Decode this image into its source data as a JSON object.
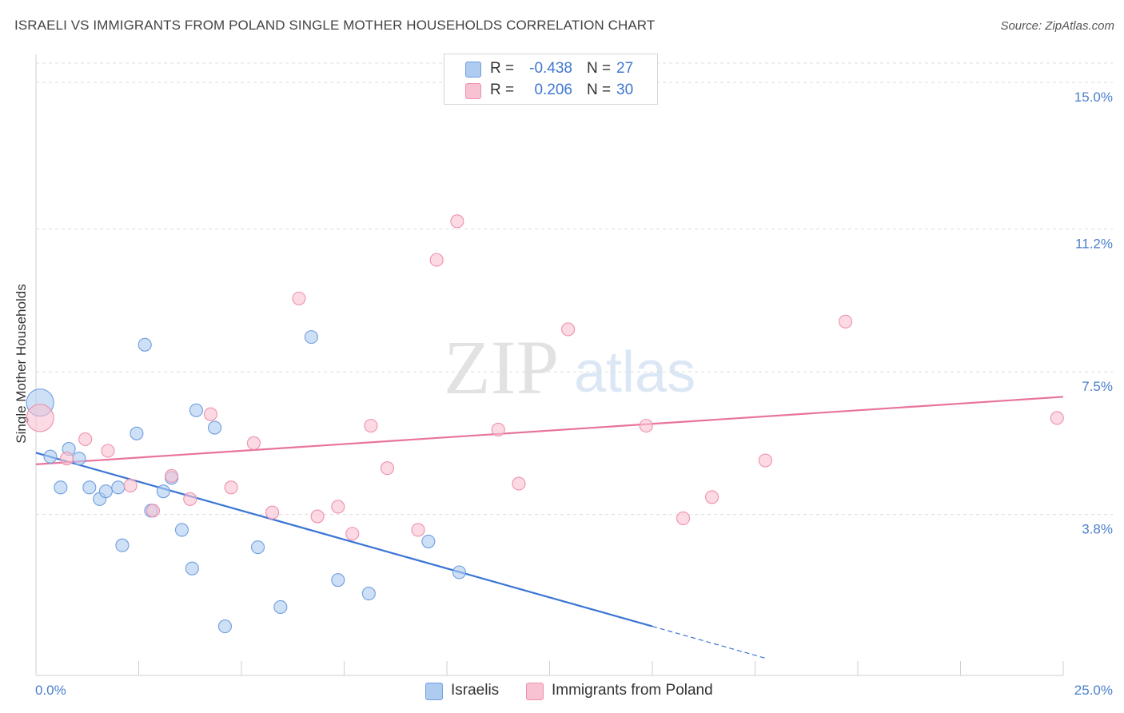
{
  "header": {
    "title": "ISRAELI VS IMMIGRANTS FROM POLAND SINGLE MOTHER HOUSEHOLDS CORRELATION CHART",
    "source": "Source: ZipAtlas.com"
  },
  "watermark": {
    "zip": "ZIP",
    "atlas": "atlas"
  },
  "legend": {
    "rows": [
      {
        "r_label": "R =",
        "r_value": "-0.438",
        "n_label": "N =",
        "n_value": "27",
        "color": "#aecbf0",
        "border": "#6f9ee0"
      },
      {
        "r_label": "R =",
        "r_value": "0.206",
        "n_label": "N =",
        "n_value": "30",
        "color": "#f8c2d2",
        "border": "#ee90ab"
      }
    ]
  },
  "bottom_legend": [
    {
      "label": "Israelis",
      "color": "#aecbf0",
      "border": "#6f9ee0"
    },
    {
      "label": "Immigrants from Poland",
      "color": "#f8c2d2",
      "border": "#ee90ab"
    }
  ],
  "chart_data": {
    "type": "scatter",
    "title": "ISRAELI VS IMMIGRANTS FROM POLAND SINGLE MOTHER HOUSEHOLDS CORRELATION CHART",
    "xlabel": "",
    "ylabel": "Single Mother Households",
    "xlim": [
      0,
      25
    ],
    "ylim": [
      0,
      15.5
    ],
    "x_tick_labels": [
      "0.0%",
      "25.0%"
    ],
    "y_ticks": [
      3.8,
      7.5,
      11.2,
      15.0
    ],
    "y_tick_labels": [
      "3.8%",
      "7.5%",
      "11.2%",
      "15.0%"
    ],
    "grid": "horizontal dashed",
    "legend_placement": "top-center",
    "series": [
      {
        "name": "Israelis",
        "color": "#6f9ee0",
        "fill": "#aecbf0",
        "trend": {
          "x0": 0.0,
          "y0": 5.4,
          "x1": 15.0,
          "y1": 0.9,
          "dash_to_x": 17.8
        },
        "points": [
          {
            "x": 0.1,
            "y": 6.7,
            "big": true
          },
          {
            "x": 0.35,
            "y": 5.3
          },
          {
            "x": 0.6,
            "y": 4.5
          },
          {
            "x": 0.8,
            "y": 5.5
          },
          {
            "x": 1.05,
            "y": 5.25
          },
          {
            "x": 1.3,
            "y": 4.5
          },
          {
            "x": 1.55,
            "y": 4.2
          },
          {
            "x": 1.7,
            "y": 4.4
          },
          {
            "x": 2.0,
            "y": 4.5
          },
          {
            "x": 2.1,
            "y": 3.0
          },
          {
            "x": 2.45,
            "y": 5.9
          },
          {
            "x": 2.65,
            "y": 8.2
          },
          {
            "x": 2.8,
            "y": 3.9
          },
          {
            "x": 3.1,
            "y": 4.4
          },
          {
            "x": 3.3,
            "y": 4.75
          },
          {
            "x": 3.55,
            "y": 3.4
          },
          {
            "x": 3.8,
            "y": 2.4
          },
          {
            "x": 3.9,
            "y": 6.5
          },
          {
            "x": 4.35,
            "y": 6.05
          },
          {
            "x": 4.6,
            "y": 0.9
          },
          {
            "x": 5.4,
            "y": 2.95
          },
          {
            "x": 5.95,
            "y": 1.4
          },
          {
            "x": 6.7,
            "y": 8.4
          },
          {
            "x": 7.35,
            "y": 2.1
          },
          {
            "x": 8.1,
            "y": 1.75
          },
          {
            "x": 9.55,
            "y": 3.1
          },
          {
            "x": 10.3,
            "y": 2.3
          }
        ]
      },
      {
        "name": "Immigrants from Poland",
        "color": "#ee90ab",
        "fill": "#f8c2d2",
        "trend": {
          "x0": 0.0,
          "y0": 5.1,
          "x1": 25.0,
          "y1": 6.85
        },
        "points": [
          {
            "x": 0.1,
            "y": 6.3,
            "big": true
          },
          {
            "x": 0.75,
            "y": 5.25
          },
          {
            "x": 1.2,
            "y": 5.75
          },
          {
            "x": 1.75,
            "y": 5.45
          },
          {
            "x": 2.3,
            "y": 4.55
          },
          {
            "x": 2.85,
            "y": 3.9
          },
          {
            "x": 3.3,
            "y": 4.8
          },
          {
            "x": 3.75,
            "y": 4.2
          },
          {
            "x": 4.25,
            "y": 6.4
          },
          {
            "x": 4.75,
            "y": 4.5
          },
          {
            "x": 5.3,
            "y": 5.65
          },
          {
            "x": 5.75,
            "y": 3.85
          },
          {
            "x": 6.4,
            "y": 9.4
          },
          {
            "x": 6.85,
            "y": 3.75
          },
          {
            "x": 7.35,
            "y": 4.0
          },
          {
            "x": 7.7,
            "y": 3.3
          },
          {
            "x": 8.15,
            "y": 6.1
          },
          {
            "x": 8.55,
            "y": 5.0
          },
          {
            "x": 9.3,
            "y": 3.4
          },
          {
            "x": 9.75,
            "y": 10.4
          },
          {
            "x": 10.25,
            "y": 11.4
          },
          {
            "x": 11.25,
            "y": 6.0
          },
          {
            "x": 11.75,
            "y": 4.6
          },
          {
            "x": 12.95,
            "y": 8.6
          },
          {
            "x": 14.85,
            "y": 6.1
          },
          {
            "x": 15.75,
            "y": 3.7
          },
          {
            "x": 16.45,
            "y": 4.25
          },
          {
            "x": 17.75,
            "y": 5.2
          },
          {
            "x": 19.7,
            "y": 8.8
          },
          {
            "x": 24.85,
            "y": 6.3
          }
        ]
      }
    ]
  }
}
